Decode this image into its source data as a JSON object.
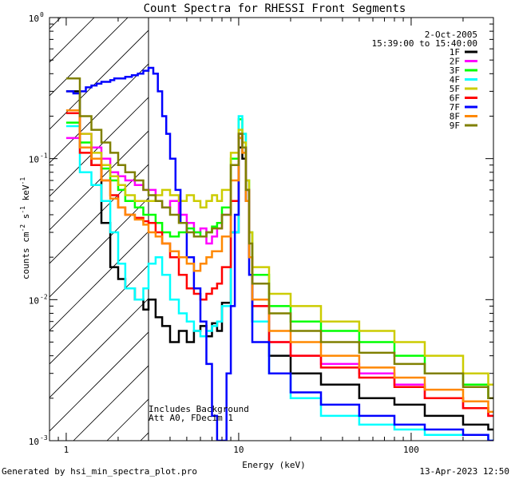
{
  "chart_data": {
    "type": "line",
    "title": "Count Spectra for RHESSI Front Segments",
    "xlabel": "Energy (keV)",
    "ylabel": "counts cm",
    "ylabel_parts": {
      "base": "counts cm",
      "sup1": "-2",
      "mid": " s",
      "sup2": "-1",
      "unit": " keV",
      "sup3": "-1"
    },
    "x_scale": "log",
    "y_scale": "log",
    "xlim": [
      0.8,
      300
    ],
    "ylim": [
      0.001,
      1
    ],
    "x_ticks": [
      {
        "v": 1,
        "label": "1"
      },
      {
        "v": 10,
        "label": "10"
      },
      {
        "v": 100,
        "label": "100"
      }
    ],
    "y_ticks": [
      {
        "v": 1,
        "base": "10",
        "exp": "0"
      },
      {
        "v": 0.1,
        "base": "10",
        "exp": "-1"
      },
      {
        "v": 0.01,
        "base": "10",
        "exp": "-2"
      },
      {
        "v": 0.001,
        "base": "10",
        "exp": "-3"
      }
    ],
    "shaded_region": {
      "x_from": 0.8,
      "x_to": 3.0,
      "pattern": "diagonal-hatch"
    },
    "date": "2-Oct-2005",
    "time_range": "15:39:00 to 15:40:00",
    "annotations": [
      "Includes Background",
      "Att A0, FDecim 1"
    ],
    "series": [
      {
        "name": "1F",
        "color": "#000000",
        "x": [
          1.0,
          1.2,
          1.4,
          1.6,
          1.8,
          2.0,
          2.2,
          2.5,
          2.8,
          3.0,
          3.3,
          3.6,
          4.0,
          4.5,
          5.0,
          5.5,
          6.0,
          6.5,
          7.0,
          7.5,
          8.0,
          9.0,
          10.0,
          10.5,
          11.0,
          11.5,
          12.0,
          15,
          20,
          30,
          50,
          80,
          120,
          200,
          280
        ],
        "y": [
          0.3,
          0.12,
          0.09,
          0.035,
          0.017,
          0.014,
          0.012,
          0.01,
          0.0085,
          0.01,
          0.0075,
          0.0065,
          0.005,
          0.006,
          0.005,
          0.006,
          0.0065,
          0.0055,
          0.0068,
          0.006,
          0.0095,
          0.03,
          0.12,
          0.1,
          0.05,
          0.02,
          0.007,
          0.004,
          0.003,
          0.0025,
          0.002,
          0.0018,
          0.0015,
          0.0013,
          0.0012
        ]
      },
      {
        "name": "2F",
        "color": "#ff00ff",
        "x": [
          1.0,
          1.2,
          1.4,
          1.6,
          1.8,
          2.0,
          2.2,
          2.5,
          2.8,
          3.0,
          3.3,
          3.6,
          4.0,
          4.5,
          5.0,
          5.5,
          6.0,
          6.5,
          7.0,
          7.5,
          8.0,
          9.0,
          10.0,
          10.5,
          11.0,
          11.5,
          12.0,
          15,
          20,
          30,
          50,
          80,
          120,
          200,
          280
        ],
        "y": [
          0.14,
          0.15,
          0.12,
          0.1,
          0.08,
          0.075,
          0.07,
          0.065,
          0.06,
          0.06,
          0.05,
          0.045,
          0.05,
          0.04,
          0.035,
          0.03,
          0.032,
          0.025,
          0.028,
          0.032,
          0.04,
          0.09,
          0.15,
          0.12,
          0.06,
          0.02,
          0.009,
          0.005,
          0.004,
          0.0035,
          0.003,
          0.0025,
          0.002,
          0.0017,
          0.0015
        ]
      },
      {
        "name": "3F",
        "color": "#00ff00",
        "x": [
          1.0,
          1.2,
          1.4,
          1.6,
          1.8,
          2.0,
          2.2,
          2.5,
          2.8,
          3.0,
          3.3,
          3.6,
          4.0,
          4.5,
          5.0,
          5.5,
          6.0,
          6.5,
          7.0,
          7.5,
          8.0,
          9.0,
          10.0,
          10.5,
          11.0,
          11.5,
          12.0,
          15,
          20,
          30,
          50,
          80,
          120,
          200,
          280
        ],
        "y": [
          0.18,
          0.13,
          0.1,
          0.085,
          0.07,
          0.06,
          0.05,
          0.045,
          0.04,
          0.04,
          0.035,
          0.03,
          0.028,
          0.03,
          0.032,
          0.03,
          0.028,
          0.03,
          0.033,
          0.035,
          0.045,
          0.1,
          0.19,
          0.15,
          0.07,
          0.03,
          0.015,
          0.009,
          0.007,
          0.006,
          0.005,
          0.004,
          0.003,
          0.0025,
          0.002
        ]
      },
      {
        "name": "4F",
        "color": "#00ffff",
        "x": [
          1.0,
          1.2,
          1.4,
          1.6,
          1.8,
          2.0,
          2.2,
          2.5,
          2.8,
          3.0,
          3.3,
          3.6,
          4.0,
          4.5,
          5.0,
          5.5,
          6.0,
          6.5,
          7.0,
          7.5,
          8.0,
          9.0,
          10.0,
          10.5,
          11.0,
          11.5,
          12.0,
          15,
          20,
          30,
          50,
          80,
          120,
          200,
          280
        ],
        "y": [
          0.17,
          0.08,
          0.065,
          0.05,
          0.03,
          0.018,
          0.012,
          0.01,
          0.012,
          0.018,
          0.02,
          0.015,
          0.01,
          0.008,
          0.007,
          0.006,
          0.0055,
          0.006,
          0.0065,
          0.007,
          0.009,
          0.03,
          0.2,
          0.15,
          0.06,
          0.02,
          0.007,
          0.003,
          0.002,
          0.0015,
          0.0013,
          0.0012,
          0.0011,
          0.0011,
          0.001
        ]
      },
      {
        "name": "5F",
        "color": "#cccc00",
        "x": [
          1.0,
          1.2,
          1.4,
          1.6,
          1.8,
          2.0,
          2.2,
          2.5,
          2.8,
          3.0,
          3.3,
          3.6,
          4.0,
          4.5,
          5.0,
          5.5,
          6.0,
          6.5,
          7.0,
          7.5,
          8.0,
          9.0,
          10.0,
          10.5,
          11.0,
          11.5,
          12.0,
          15,
          20,
          30,
          50,
          80,
          120,
          200,
          280
        ],
        "y": [
          0.22,
          0.15,
          0.11,
          0.09,
          0.075,
          0.065,
          0.055,
          0.05,
          0.05,
          0.05,
          0.055,
          0.06,
          0.055,
          0.05,
          0.055,
          0.05,
          0.045,
          0.05,
          0.055,
          0.05,
          0.06,
          0.11,
          0.16,
          0.13,
          0.07,
          0.03,
          0.017,
          0.011,
          0.009,
          0.007,
          0.006,
          0.005,
          0.004,
          0.003,
          0.0025
        ]
      },
      {
        "name": "6F",
        "color": "#ff0000",
        "x": [
          1.0,
          1.2,
          1.4,
          1.6,
          1.8,
          2.0,
          2.2,
          2.5,
          2.8,
          3.0,
          3.3,
          3.6,
          4.0,
          4.5,
          5.0,
          5.5,
          6.0,
          6.5,
          7.0,
          7.5,
          8.0,
          9.0,
          10.0,
          10.5,
          11.0,
          11.5,
          12.0,
          15,
          20,
          30,
          50,
          80,
          120,
          200,
          280
        ],
        "y": [
          0.21,
          0.11,
          0.09,
          0.07,
          0.055,
          0.045,
          0.04,
          0.038,
          0.036,
          0.035,
          0.03,
          0.025,
          0.02,
          0.015,
          0.012,
          0.011,
          0.01,
          0.011,
          0.012,
          0.013,
          0.017,
          0.05,
          0.15,
          0.12,
          0.06,
          0.02,
          0.009,
          0.005,
          0.004,
          0.0033,
          0.0028,
          0.0024,
          0.002,
          0.0017,
          0.0015
        ]
      },
      {
        "name": "7F",
        "color": "#0000ff",
        "x": [
          1.0,
          1.1,
          1.2,
          1.3,
          1.4,
          1.5,
          1.6,
          1.7,
          1.8,
          1.9,
          2.0,
          2.2,
          2.4,
          2.6,
          2.8,
          3.0,
          3.2,
          3.4,
          3.6,
          3.8,
          4.0,
          4.3,
          4.6,
          5.0,
          5.5,
          6.0,
          6.5,
          7.0,
          7.5,
          8.0,
          8.5,
          9.0,
          9.5,
          10.0,
          10.5,
          11.0,
          11.5,
          12.0,
          15,
          20,
          30,
          50,
          80,
          120,
          200,
          280
        ],
        "y": [
          0.3,
          0.29,
          0.3,
          0.32,
          0.33,
          0.34,
          0.35,
          0.35,
          0.36,
          0.37,
          0.37,
          0.38,
          0.39,
          0.4,
          0.42,
          0.44,
          0.4,
          0.3,
          0.2,
          0.15,
          0.1,
          0.06,
          0.035,
          0.02,
          0.012,
          0.007,
          0.0035,
          0.0015,
          0.001,
          0.001,
          0.003,
          0.009,
          0.04,
          0.14,
          0.12,
          0.05,
          0.015,
          0.005,
          0.003,
          0.0022,
          0.0018,
          0.0015,
          0.0013,
          0.0012,
          0.0011,
          0.001
        ]
      },
      {
        "name": "8F",
        "color": "#ff8800",
        "x": [
          1.0,
          1.2,
          1.4,
          1.6,
          1.8,
          2.0,
          2.2,
          2.5,
          2.8,
          3.0,
          3.3,
          3.6,
          4.0,
          4.5,
          5.0,
          5.5,
          6.0,
          6.5,
          7.0,
          7.5,
          8.0,
          9.0,
          10.0,
          10.5,
          11.0,
          11.5,
          12.0,
          15,
          20,
          30,
          50,
          80,
          120,
          200,
          280
        ],
        "y": [
          0.22,
          0.12,
          0.1,
          0.07,
          0.052,
          0.045,
          0.04,
          0.037,
          0.034,
          0.03,
          0.028,
          0.025,
          0.022,
          0.02,
          0.018,
          0.016,
          0.018,
          0.02,
          0.022,
          0.022,
          0.028,
          0.07,
          0.14,
          0.11,
          0.05,
          0.02,
          0.01,
          0.006,
          0.005,
          0.004,
          0.0033,
          0.0028,
          0.0023,
          0.0019,
          0.0016
        ]
      },
      {
        "name": "9F",
        "color": "#808000",
        "x": [
          1.0,
          1.2,
          1.4,
          1.6,
          1.8,
          2.0,
          2.2,
          2.5,
          2.8,
          3.0,
          3.3,
          3.6,
          4.0,
          4.5,
          5.0,
          5.5,
          6.0,
          6.5,
          7.0,
          7.5,
          8.0,
          9.0,
          10.0,
          10.5,
          11.0,
          11.5,
          12.0,
          15,
          20,
          30,
          50,
          80,
          120,
          200,
          280
        ],
        "y": [
          0.37,
          0.2,
          0.16,
          0.13,
          0.11,
          0.09,
          0.08,
          0.07,
          0.06,
          0.055,
          0.05,
          0.045,
          0.04,
          0.035,
          0.03,
          0.028,
          0.028,
          0.03,
          0.032,
          0.032,
          0.04,
          0.09,
          0.15,
          0.12,
          0.06,
          0.025,
          0.013,
          0.008,
          0.006,
          0.005,
          0.0042,
          0.0035,
          0.003,
          0.0024,
          0.002
        ]
      }
    ]
  },
  "footer": {
    "generated_by": "Generated by hsi_min_spectra_plot.pro",
    "timestamp": "13-Apr-2023 12:50"
  }
}
